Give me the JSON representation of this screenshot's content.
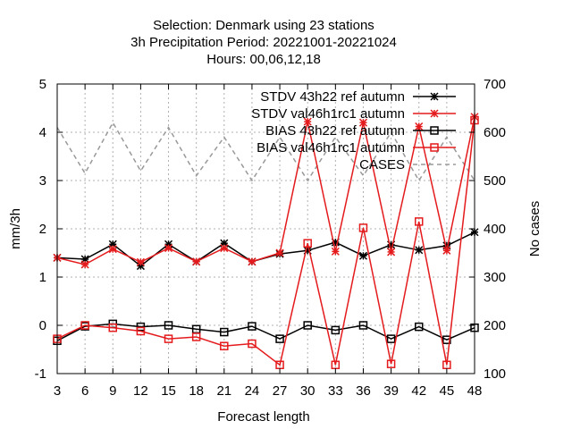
{
  "chart_data": {
    "type": "line",
    "title_lines": [
      "Selection: Denmark using    23 stations",
      "3h Precipitation   Period: 20221001-20221024",
      "Hours:  00,06,12,18"
    ],
    "xlabel": "Forecast length",
    "ylabel": "mm/3h",
    "y2label": "No cases",
    "x": [
      3,
      6,
      9,
      12,
      15,
      18,
      21,
      24,
      27,
      30,
      33,
      36,
      39,
      42,
      45,
      48
    ],
    "xlim": [
      3,
      48
    ],
    "ylim": [
      -1,
      5
    ],
    "y2lim": [
      100,
      700
    ],
    "xticks": [
      3,
      6,
      9,
      12,
      15,
      18,
      21,
      24,
      27,
      30,
      33,
      36,
      39,
      42,
      45,
      48
    ],
    "yticks": [
      -1,
      0,
      1,
      2,
      3,
      4,
      5
    ],
    "y2ticks": [
      100,
      200,
      300,
      400,
      500,
      600,
      700
    ],
    "grid": true,
    "legend_position": "top-right",
    "series": [
      {
        "name": "STDV 43h22_ref_autumn",
        "legend_label": "STDV 43h22 ref autumn",
        "color": "#000000",
        "marker": "star",
        "dashed": false,
        "axis": "y",
        "values": [
          1.4,
          1.37,
          1.68,
          1.23,
          1.68,
          1.32,
          1.7,
          1.32,
          1.48,
          1.55,
          1.72,
          1.44,
          1.67,
          1.56,
          1.65,
          1.93
        ]
      },
      {
        "name": "STDV val46h1rc1_autumn",
        "legend_label": "STDV val46h1rc1 autumn",
        "color": "#e41a1c",
        "marker": "star",
        "dashed": false,
        "axis": "y",
        "values": [
          1.4,
          1.26,
          1.58,
          1.31,
          1.6,
          1.32,
          1.6,
          1.32,
          1.5,
          4.22,
          1.53,
          4.2,
          1.52,
          4.12,
          1.55,
          4.32
        ]
      },
      {
        "name": "BIAS 43h22_ref_autumn",
        "legend_label": "BIAS 43h22 ref autumn",
        "color": "#000000",
        "marker": "square",
        "dashed": false,
        "axis": "y",
        "values": [
          -0.32,
          -0.02,
          0.03,
          -0.03,
          0.0,
          -0.08,
          -0.14,
          -0.02,
          -0.28,
          0.0,
          -0.1,
          0.0,
          -0.28,
          -0.03,
          -0.3,
          -0.05
        ]
      },
      {
        "name": "BIAS val46h1rc1_autumn",
        "legend_label": "BIAS val46h1rc1 autumn",
        "color": "#e41a1c",
        "marker": "square",
        "dashed": false,
        "axis": "y",
        "values": [
          -0.28,
          0.0,
          -0.05,
          -0.12,
          -0.28,
          -0.24,
          -0.43,
          -0.38,
          -0.82,
          1.7,
          -0.82,
          2.02,
          -0.8,
          2.15,
          -0.82,
          4.25
        ]
      },
      {
        "name": "CASES",
        "legend_label": "CASES",
        "color": "#999999",
        "marker": "none",
        "dashed": true,
        "axis": "y2",
        "values": [
          610,
          515,
          620,
          520,
          610,
          510,
          590,
          500,
          590,
          500,
          590,
          510,
          600,
          500,
          590,
          500
        ]
      }
    ]
  }
}
